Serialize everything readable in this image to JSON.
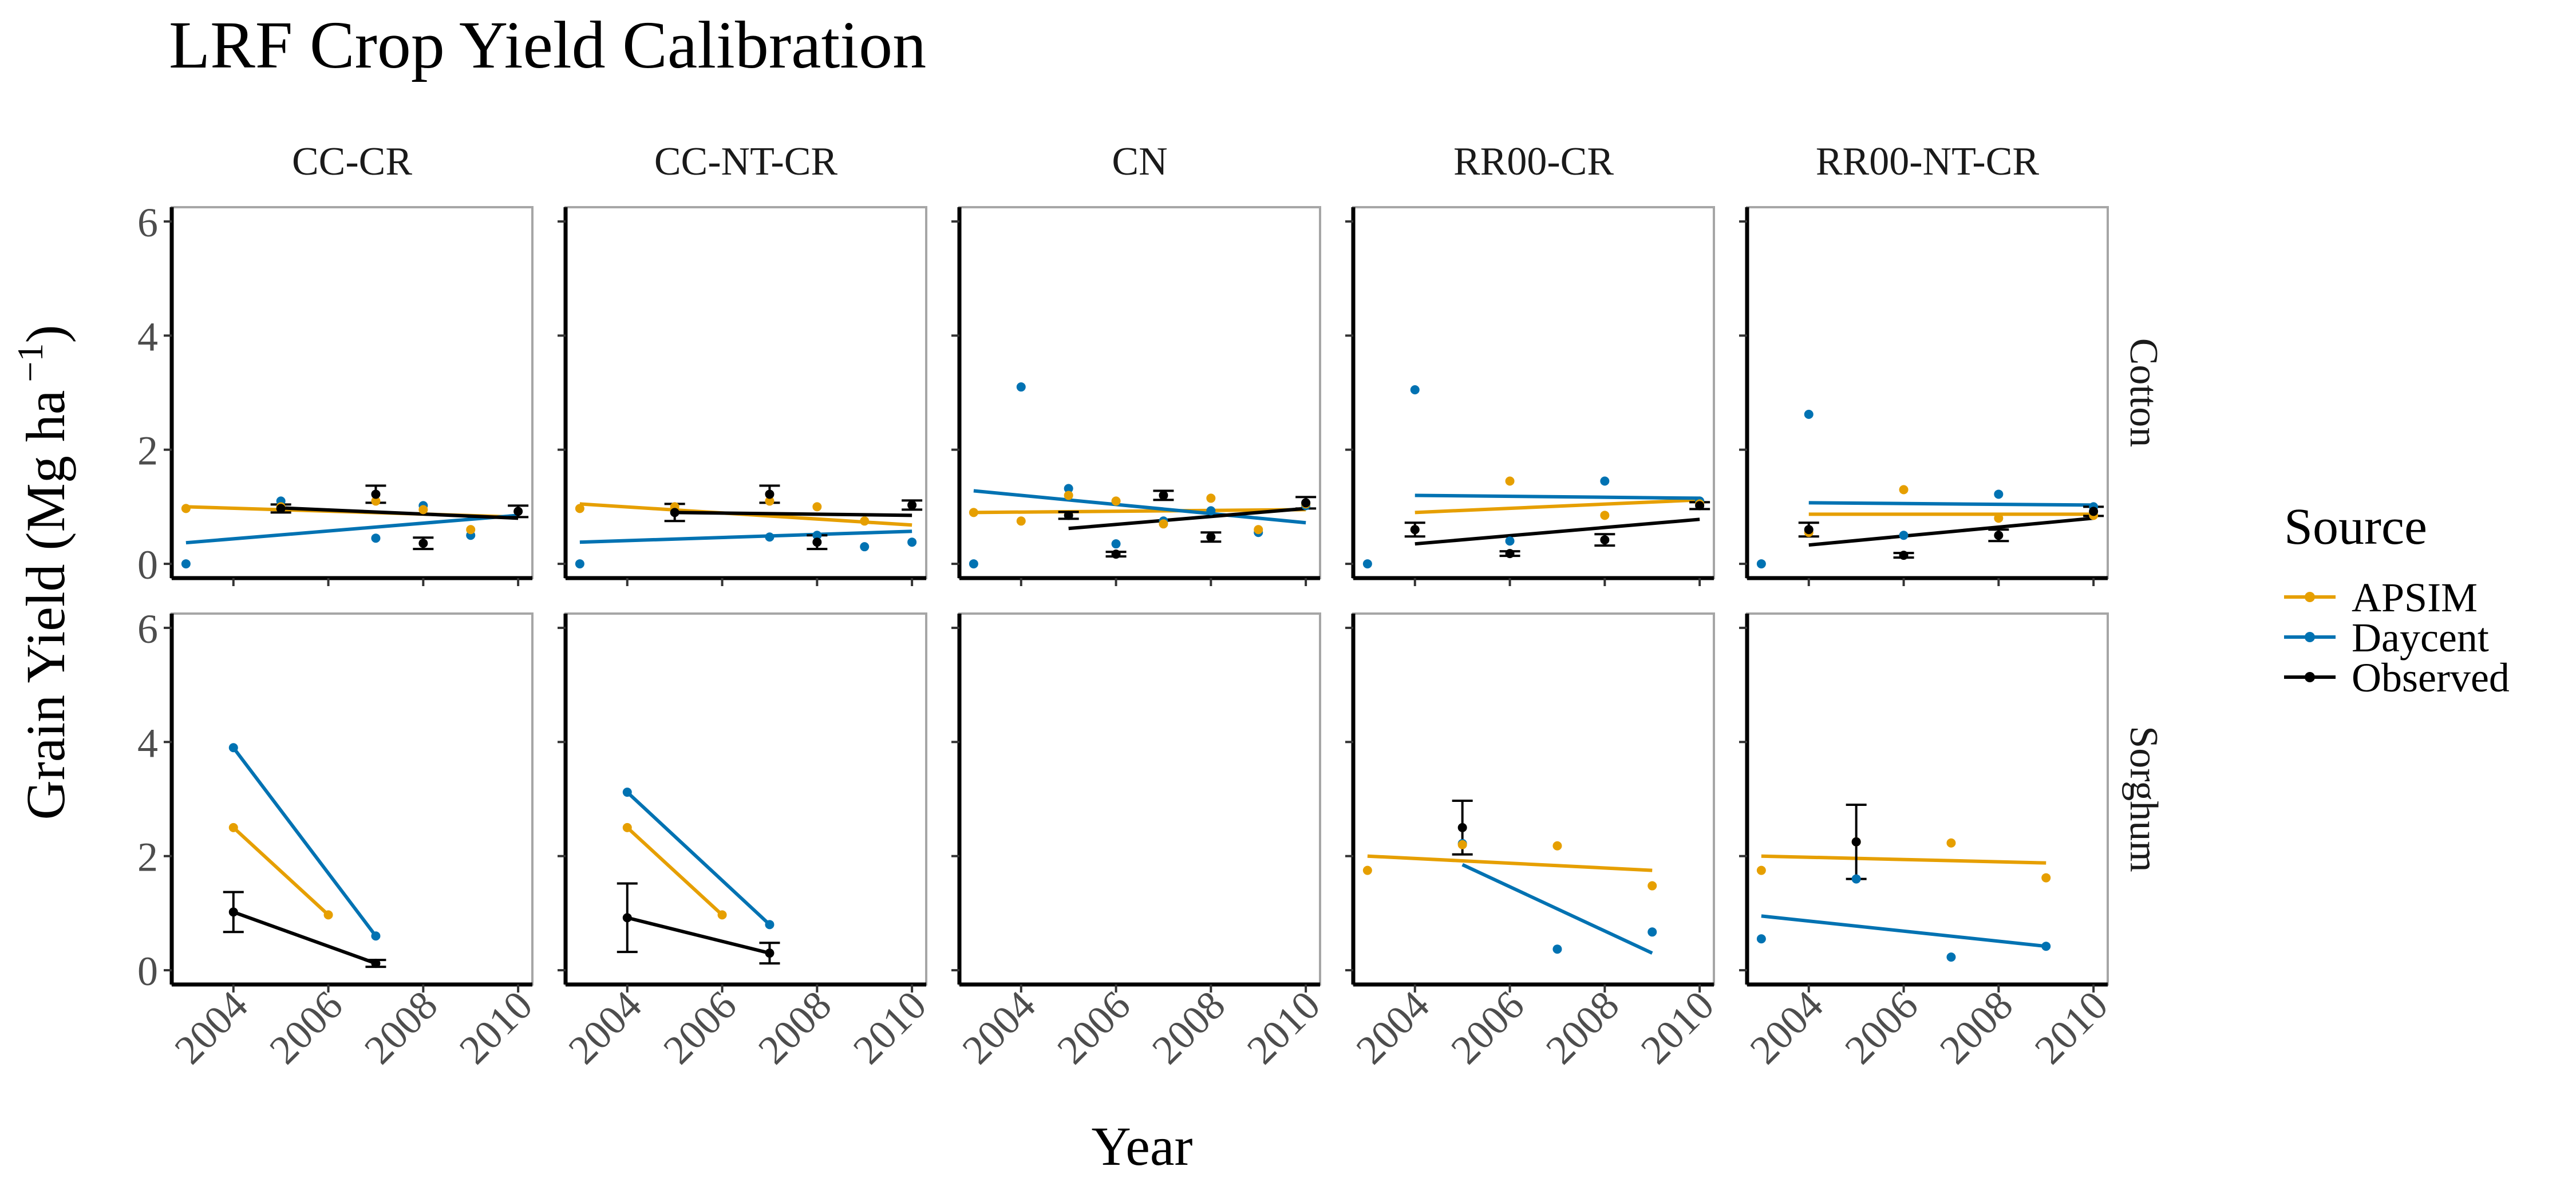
{
  "chart_data": {
    "type": "scatter",
    "title": "LRF Crop Yield Calibration",
    "xlabel": "Year",
    "ylabel": "Grain Yield (Mg ha −1)",
    "ylabel_main": "Grain Yield (Mg ha",
    "ylabel_sup": "−1",
    "ylabel_close": ")",
    "xlim": [
      2002.7,
      2010.3
    ],
    "ylim": [
      -0.25,
      6.25
    ],
    "x_ticks": [
      2004,
      2006,
      2008,
      2010
    ],
    "y_ticks": [
      0,
      2,
      4,
      6
    ],
    "legend": {
      "title": "Source",
      "placement": "right",
      "entries": [
        {
          "name": "APSIM",
          "color": "#E69F00"
        },
        {
          "name": "Daycent",
          "color": "#0072B2"
        },
        {
          "name": "Observed",
          "color": "#000000"
        }
      ]
    },
    "columns": [
      "CC-CR",
      "CC-NT-CR",
      "CN",
      "RR00-CR",
      "RR00-NT-CR"
    ],
    "rows": [
      "Cotton",
      "Sorghum"
    ],
    "panels": [
      {
        "column": "CC-CR",
        "row": "Cotton",
        "apsim": [
          [
            2003,
            0.97
          ],
          [
            2005,
            1.0
          ],
          [
            2007,
            1.1
          ],
          [
            2008,
            0.95
          ],
          [
            2009,
            0.6
          ]
        ],
        "daycent": [
          [
            2003,
            0.0
          ],
          [
            2005,
            1.1
          ],
          [
            2007,
            0.45
          ],
          [
            2008,
            1.02
          ],
          [
            2009,
            0.5
          ]
        ],
        "observed": [
          [
            2005,
            0.97,
            0.07
          ],
          [
            2007,
            1.22,
            0.15
          ],
          [
            2008,
            0.36,
            0.1
          ],
          [
            2010,
            0.92,
            0.1
          ]
        ],
        "fit_apsim": [
          [
            2003,
            1.0
          ],
          [
            2010,
            0.82
          ]
        ],
        "fit_daycent": [
          [
            2003,
            0.37
          ],
          [
            2010,
            0.85
          ]
        ],
        "fit_observed": [
          [
            2005,
            0.98
          ],
          [
            2010,
            0.8
          ]
        ]
      },
      {
        "column": "CC-NT-CR",
        "row": "Cotton",
        "apsim": [
          [
            2003,
            0.97
          ],
          [
            2005,
            1.0
          ],
          [
            2007,
            1.1
          ],
          [
            2008,
            1.0
          ],
          [
            2009,
            0.75
          ]
        ],
        "daycent": [
          [
            2003,
            0.0
          ],
          [
            2007,
            0.47
          ],
          [
            2008,
            0.5
          ],
          [
            2009,
            0.3
          ],
          [
            2010,
            0.38
          ]
        ],
        "observed": [
          [
            2005,
            0.9,
            0.15
          ],
          [
            2007,
            1.22,
            0.15
          ],
          [
            2008,
            0.38,
            0.12
          ],
          [
            2010,
            1.03,
            0.08
          ]
        ],
        "fit_apsim": [
          [
            2003,
            1.05
          ],
          [
            2010,
            0.68
          ]
        ],
        "fit_daycent": [
          [
            2003,
            0.38
          ],
          [
            2010,
            0.57
          ]
        ],
        "fit_observed": [
          [
            2005,
            0.9
          ],
          [
            2010,
            0.85
          ]
        ]
      },
      {
        "column": "CN",
        "row": "Cotton",
        "apsim": [
          [
            2003,
            0.9
          ],
          [
            2004,
            0.75
          ],
          [
            2005,
            1.2
          ],
          [
            2006,
            1.1
          ],
          [
            2007,
            0.7
          ],
          [
            2008,
            1.15
          ],
          [
            2009,
            0.6
          ],
          [
            2010,
            1.05
          ]
        ],
        "daycent": [
          [
            2003,
            0.0
          ],
          [
            2004,
            3.1
          ],
          [
            2005,
            1.32
          ],
          [
            2006,
            0.35
          ],
          [
            2007,
            0.75
          ],
          [
            2008,
            0.93
          ],
          [
            2009,
            0.55
          ],
          [
            2010,
            1.02
          ]
        ],
        "observed": [
          [
            2005,
            0.85,
            0.06
          ],
          [
            2006,
            0.17,
            0.04
          ],
          [
            2007,
            1.2,
            0.08
          ],
          [
            2008,
            0.47,
            0.08
          ],
          [
            2010,
            1.07,
            0.1
          ]
        ],
        "fit_apsim": [
          [
            2003,
            0.9
          ],
          [
            2010,
            0.95
          ]
        ],
        "fit_daycent": [
          [
            2003,
            1.28
          ],
          [
            2010,
            0.72
          ]
        ],
        "fit_observed": [
          [
            2005,
            0.62
          ],
          [
            2010,
            0.97
          ]
        ]
      },
      {
        "column": "RR00-CR",
        "row": "Cotton",
        "apsim": [
          [
            2004,
            0.6
          ],
          [
            2006,
            1.45
          ],
          [
            2008,
            0.85
          ],
          [
            2010,
            1.05
          ]
        ],
        "daycent": [
          [
            2003,
            0.0
          ],
          [
            2004,
            3.05
          ],
          [
            2006,
            0.4
          ],
          [
            2008,
            1.45
          ],
          [
            2010,
            1.1
          ]
        ],
        "observed": [
          [
            2004,
            0.6,
            0.12
          ],
          [
            2006,
            0.18,
            0.04
          ],
          [
            2008,
            0.42,
            0.1
          ],
          [
            2010,
            1.02,
            0.06
          ]
        ],
        "fit_apsim": [
          [
            2004,
            0.9
          ],
          [
            2010,
            1.12
          ]
        ],
        "fit_daycent": [
          [
            2004,
            1.2
          ],
          [
            2010,
            1.15
          ]
        ],
        "fit_observed": [
          [
            2004,
            0.35
          ],
          [
            2010,
            0.78
          ]
        ]
      },
      {
        "column": "RR00-NT-CR",
        "row": "Cotton",
        "apsim": [
          [
            2004,
            0.55
          ],
          [
            2006,
            1.3
          ],
          [
            2008,
            0.8
          ],
          [
            2010,
            0.85
          ]
        ],
        "daycent": [
          [
            2003,
            0.0
          ],
          [
            2004,
            2.62
          ],
          [
            2006,
            0.5
          ],
          [
            2008,
            1.22
          ],
          [
            2010,
            1.0
          ]
        ],
        "observed": [
          [
            2004,
            0.6,
            0.12
          ],
          [
            2006,
            0.15,
            0.04
          ],
          [
            2008,
            0.5,
            0.1
          ],
          [
            2010,
            0.92,
            0.08
          ]
        ],
        "fit_apsim": [
          [
            2004,
            0.87
          ],
          [
            2010,
            0.87
          ]
        ],
        "fit_daycent": [
          [
            2004,
            1.07
          ],
          [
            2010,
            1.03
          ]
        ],
        "fit_observed": [
          [
            2004,
            0.33
          ],
          [
            2010,
            0.8
          ]
        ]
      },
      {
        "column": "CC-CR",
        "row": "Sorghum",
        "apsim": [
          [
            2004,
            2.5
          ],
          [
            2006,
            0.97
          ]
        ],
        "daycent": [
          [
            2004,
            3.9
          ],
          [
            2007,
            0.6
          ]
        ],
        "observed": [
          [
            2004,
            1.02,
            0.35
          ],
          [
            2007,
            0.12,
            0.06
          ]
        ],
        "fit_apsim": [
          [
            2004,
            2.5
          ],
          [
            2006,
            0.97
          ]
        ],
        "fit_daycent": [
          [
            2004,
            3.9
          ],
          [
            2007,
            0.6
          ]
        ],
        "fit_observed": [
          [
            2004,
            1.02
          ],
          [
            2007,
            0.12
          ]
        ]
      },
      {
        "column": "CC-NT-CR",
        "row": "Sorghum",
        "apsim": [
          [
            2004,
            2.5
          ],
          [
            2006,
            0.97
          ]
        ],
        "daycent": [
          [
            2004,
            3.12
          ],
          [
            2007,
            0.8
          ]
        ],
        "observed": [
          [
            2004,
            0.92,
            0.6
          ],
          [
            2007,
            0.3,
            0.18
          ]
        ],
        "fit_apsim": [
          [
            2004,
            2.5
          ],
          [
            2006,
            0.97
          ]
        ],
        "fit_daycent": [
          [
            2004,
            3.12
          ],
          [
            2007,
            0.8
          ]
        ],
        "fit_observed": [
          [
            2004,
            0.92
          ],
          [
            2007,
            0.3
          ]
        ]
      },
      {
        "column": "CN",
        "row": "Sorghum",
        "apsim": [],
        "daycent": [],
        "observed": [],
        "fit_apsim": [],
        "fit_daycent": [],
        "fit_observed": []
      },
      {
        "column": "RR00-CR",
        "row": "Sorghum",
        "apsim": [
          [
            2003,
            1.75
          ],
          [
            2005,
            2.2
          ],
          [
            2007,
            2.18
          ],
          [
            2009,
            1.48
          ]
        ],
        "daycent": [
          [
            2005,
            2.22
          ],
          [
            2007,
            0.37
          ],
          [
            2009,
            0.67
          ]
        ],
        "observed": [
          [
            2005,
            2.5,
            0.47
          ]
        ],
        "fit_apsim": [
          [
            2003,
            2.0
          ],
          [
            2009,
            1.75
          ]
        ],
        "fit_daycent": [
          [
            2005,
            1.85
          ],
          [
            2009,
            0.3
          ]
        ],
        "fit_observed": []
      },
      {
        "column": "RR00-NT-CR",
        "row": "Sorghum",
        "apsim": [
          [
            2003,
            1.75
          ],
          [
            2005,
            2.25
          ],
          [
            2007,
            2.23
          ],
          [
            2009,
            1.62
          ]
        ],
        "daycent": [
          [
            2003,
            0.55
          ],
          [
            2005,
            1.6
          ],
          [
            2007,
            0.23
          ],
          [
            2009,
            0.42
          ]
        ],
        "observed": [
          [
            2005,
            2.25,
            0.65
          ]
        ],
        "fit_apsim": [
          [
            2003,
            2.0
          ],
          [
            2009,
            1.88
          ]
        ],
        "fit_daycent": [
          [
            2003,
            0.95
          ],
          [
            2009,
            0.42
          ]
        ],
        "fit_observed": []
      }
    ]
  }
}
